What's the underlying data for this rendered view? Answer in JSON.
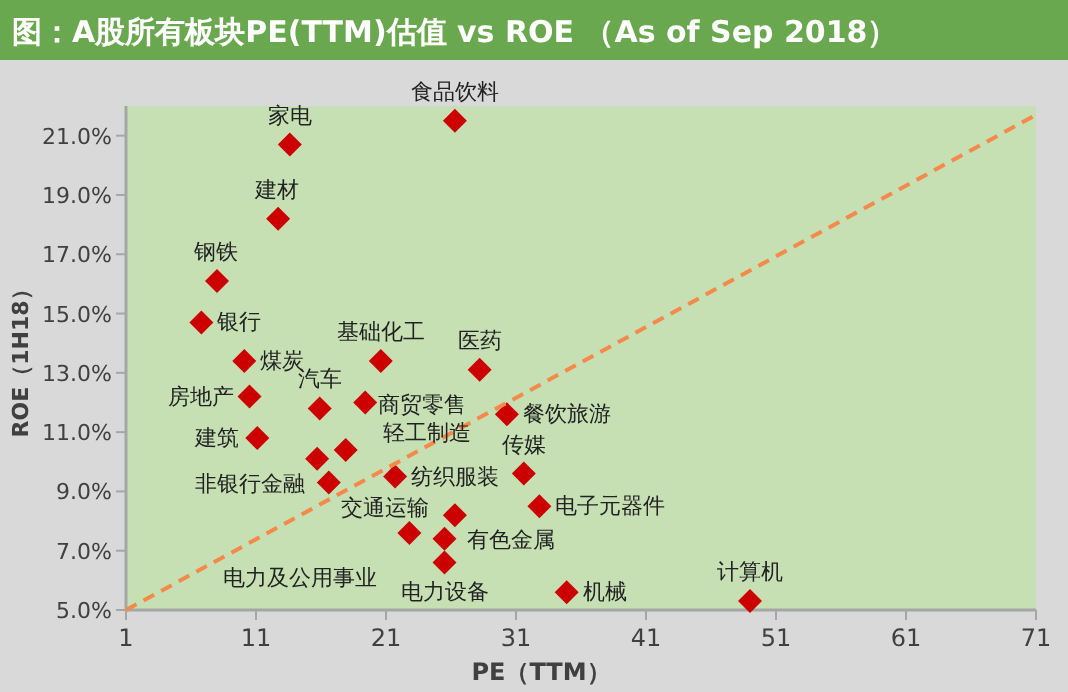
{
  "chart_data": {
    "type": "scatter",
    "title": "图：A股所有板块PE(TTM)估值 vs ROE （As of Sep 2018）",
    "xlabel": "PE（TTM）",
    "ylabel": "ROE（1H18）",
    "xlim": [
      1,
      71
    ],
    "ylim": [
      5,
      22
    ],
    "xticks": [
      1,
      11,
      21,
      31,
      41,
      51,
      61,
      71
    ],
    "yticks": [
      {
        "value": 5,
        "label": "5.0%"
      },
      {
        "value": 7,
        "label": "7.0%"
      },
      {
        "value": 9,
        "label": "9.0%"
      },
      {
        "value": 11,
        "label": "11.0%"
      },
      {
        "value": 13,
        "label": "13.0%"
      },
      {
        "value": 15,
        "label": "15.0%"
      },
      {
        "value": 17,
        "label": "17.0%"
      },
      {
        "value": 19,
        "label": "19.0%"
      },
      {
        "value": 21,
        "label": "21.0%"
      }
    ],
    "series": [
      {
        "type": "scatter",
        "color": "#cc0000",
        "marker": "diamond",
        "x": [
          13.6,
          26.3,
          12.7,
          8.0,
          6.8,
          10.1,
          10.5,
          11.1,
          15.9,
          15.7,
          16.6,
          17.9,
          19.4,
          20.6,
          28.2,
          30.3,
          21.7,
          31.6,
          32.8,
          26.3,
          22.8,
          25.5,
          25.5,
          34.9,
          49.0
        ],
        "values": [
          20.7,
          21.5,
          18.2,
          16.1,
          14.7,
          13.4,
          12.2,
          10.8,
          11.8,
          10.1,
          9.3,
          10.4,
          12.0,
          13.4,
          13.1,
          11.6,
          9.5,
          9.6,
          8.5,
          8.2,
          7.6,
          6.6,
          7.4,
          5.6,
          5.3
        ]
      },
      {
        "type": "line",
        "color": "#f4894a",
        "line_style": "dashed",
        "marker": "none",
        "x": [
          1,
          71
        ],
        "values": [
          5,
          21.7
        ]
      }
    ],
    "annotations": [
      {
        "text": "家电",
        "x": 13.6,
        "y": 20.7
      },
      {
        "text": "食品饮料",
        "x": 26.3,
        "y": 21.5
      },
      {
        "text": "建材",
        "x": 12.7,
        "y": 18.2
      },
      {
        "text": "钢铁",
        "x": 8.0,
        "y": 16.1
      },
      {
        "text": "银行",
        "x": 6.8,
        "y": 14.7
      },
      {
        "text": "煤炭",
        "x": 10.1,
        "y": 13.4
      },
      {
        "text": "房地产",
        "x": 10.5,
        "y": 12.2
      },
      {
        "text": "建筑",
        "x": 11.1,
        "y": 10.8
      },
      {
        "text": "汽车",
        "x": 15.9,
        "y": 11.8
      },
      {
        "text": "非银行金融",
        "x": 15.7,
        "y": 10.1
      },
      {
        "text": "交通运输",
        "x": 16.6,
        "y": 9.3
      },
      {
        "text": "商贸零售",
        "x": 17.9,
        "y": 10.4
      },
      {
        "text": "轻工制造",
        "x": 19.4,
        "y": 12.0
      },
      {
        "text": "基础化工",
        "x": 20.6,
        "y": 13.4
      },
      {
        "text": "医药",
        "x": 28.2,
        "y": 13.1
      },
      {
        "text": "餐饮旅游",
        "x": 30.3,
        "y": 11.6
      },
      {
        "text": "纺织服装",
        "x": 21.7,
        "y": 9.5
      },
      {
        "text": "传媒",
        "x": 31.6,
        "y": 9.6
      },
      {
        "text": "电子元器件",
        "x": 32.8,
        "y": 8.5
      },
      {
        "text": "有色金属",
        "x": 26.3,
        "y": 8.2
      },
      {
        "text": "电力及公用事业",
        "x": 22.8,
        "y": 7.6
      },
      {
        "text": "电力设备",
        "x": 25.5,
        "y": 6.6
      },
      {
        "text": "机械",
        "x": 34.9,
        "y": 5.6
      },
      {
        "text": "计算机",
        "x": 49.0,
        "y": 5.3
      }
    ]
  }
}
